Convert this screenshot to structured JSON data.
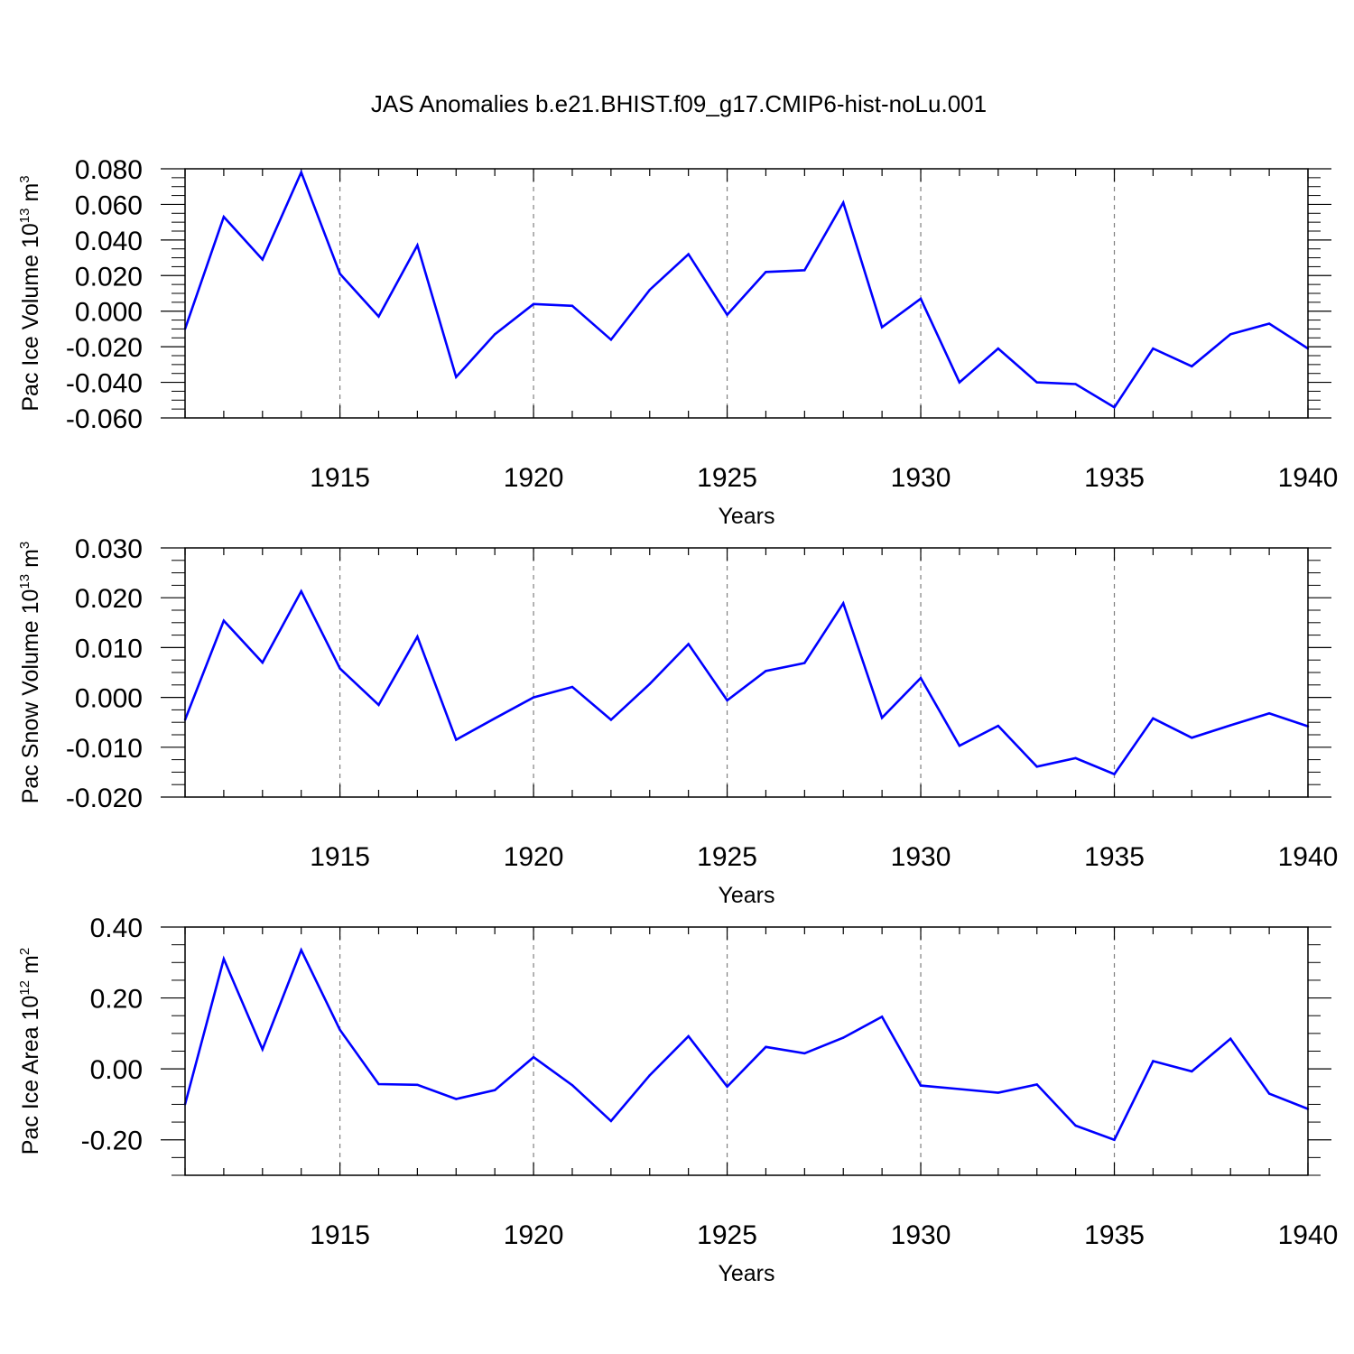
{
  "title": "JAS Anomalies b.e21.BHIST.f09_g17.CMIP6-hist-noLu.001",
  "colors": {
    "line": "#0000ff",
    "axis": "#000000",
    "grid": "#808080",
    "background": "#ffffff"
  },
  "chart_data": [
    {
      "type": "line",
      "ylabel_main": "Pac Ice Volume 10",
      "ylabel_exp": "13",
      "ylabel_unit": "m",
      "ylabel_unit_exp": "3",
      "xlabel": "Years",
      "xlim": [
        1911,
        1940
      ],
      "ylim": [
        -0.06,
        0.08
      ],
      "x_ticks": [
        "1915",
        "1920",
        "1925",
        "1930",
        "1935",
        "1940"
      ],
      "y_ticks": [
        "0.080",
        "0.060",
        "0.040",
        "0.020",
        "0.000",
        "-0.020",
        "-0.040",
        "-0.060"
      ],
      "series": [
        {
          "name": "Pac Ice Volume",
          "x": [
            1911,
            1912,
            1913,
            1914,
            1915,
            1916,
            1917,
            1918,
            1919,
            1920,
            1921,
            1922,
            1923,
            1924,
            1925,
            1926,
            1927,
            1928,
            1929,
            1930,
            1931,
            1932,
            1933,
            1934,
            1935,
            1936,
            1937,
            1938,
            1939,
            1940
          ],
          "values": [
            -0.01,
            0.053,
            0.029,
            0.078,
            0.021,
            -0.003,
            0.037,
            -0.037,
            -0.013,
            0.004,
            0.003,
            -0.016,
            0.012,
            0.032,
            -0.002,
            0.022,
            0.023,
            0.061,
            -0.009,
            0.007,
            -0.04,
            -0.021,
            -0.04,
            -0.041,
            -0.054,
            -0.021,
            -0.031,
            -0.013,
            -0.007,
            -0.021
          ]
        }
      ]
    },
    {
      "type": "line",
      "ylabel_main": "Pac Snow Volume 10",
      "ylabel_exp": "13",
      "ylabel_unit": "m",
      "ylabel_unit_exp": "3",
      "xlabel": "Years",
      "xlim": [
        1911,
        1940
      ],
      "ylim": [
        -0.02,
        0.03
      ],
      "x_ticks": [
        "1915",
        "1920",
        "1925",
        "1930",
        "1935",
        "1940"
      ],
      "y_ticks": [
        "0.030",
        "0.020",
        "0.010",
        "0.000",
        "-0.010",
        "-0.020"
      ],
      "series": [
        {
          "name": "Pac Snow Volume",
          "x": [
            1911,
            1912,
            1913,
            1914,
            1915,
            1916,
            1917,
            1918,
            1919,
            1920,
            1921,
            1922,
            1923,
            1924,
            1925,
            1926,
            1927,
            1928,
            1929,
            1930,
            1931,
            1932,
            1933,
            1934,
            1935,
            1936,
            1937,
            1938,
            1939,
            1940
          ],
          "values": [
            -0.0045,
            0.0154,
            0.007,
            0.0213,
            0.0058,
            -0.0015,
            0.0122,
            -0.0085,
            -0.0042,
            0.0,
            0.0021,
            -0.0045,
            0.0027,
            0.0107,
            -0.0006,
            0.0053,
            0.0069,
            0.0189,
            -0.0041,
            0.0039,
            -0.0097,
            -0.0057,
            -0.0139,
            -0.0122,
            -0.0154,
            -0.0042,
            -0.0081,
            -0.0056,
            -0.0032,
            -0.0058
          ]
        }
      ]
    },
    {
      "type": "line",
      "ylabel_main": "Pac Ice Area 10",
      "ylabel_exp": "12",
      "ylabel_unit": "m",
      "ylabel_unit_exp": "2",
      "xlabel": "Years",
      "xlim": [
        1911,
        1940
      ],
      "ylim": [
        -0.3,
        0.4
      ],
      "x_ticks": [
        "1915",
        "1920",
        "1925",
        "1930",
        "1935",
        "1940"
      ],
      "y_ticks": [
        "0.40",
        "0.20",
        "0.00",
        "-0.20"
      ],
      "series": [
        {
          "name": "Pac Ice Area",
          "x": [
            1911,
            1912,
            1913,
            1914,
            1915,
            1916,
            1917,
            1918,
            1919,
            1920,
            1921,
            1922,
            1923,
            1924,
            1925,
            1926,
            1927,
            1928,
            1929,
            1930,
            1931,
            1932,
            1933,
            1934,
            1935,
            1936,
            1937,
            1938,
            1939,
            1940
          ],
          "values": [
            -0.1,
            0.31,
            0.055,
            0.335,
            0.11,
            -0.043,
            -0.045,
            -0.085,
            -0.06,
            0.033,
            -0.046,
            -0.147,
            -0.018,
            0.092,
            -0.05,
            0.062,
            0.044,
            0.088,
            0.147,
            -0.047,
            -0.057,
            -0.067,
            -0.044,
            -0.16,
            -0.2,
            0.022,
            -0.007,
            0.085,
            -0.07,
            -0.113
          ]
        }
      ]
    }
  ]
}
